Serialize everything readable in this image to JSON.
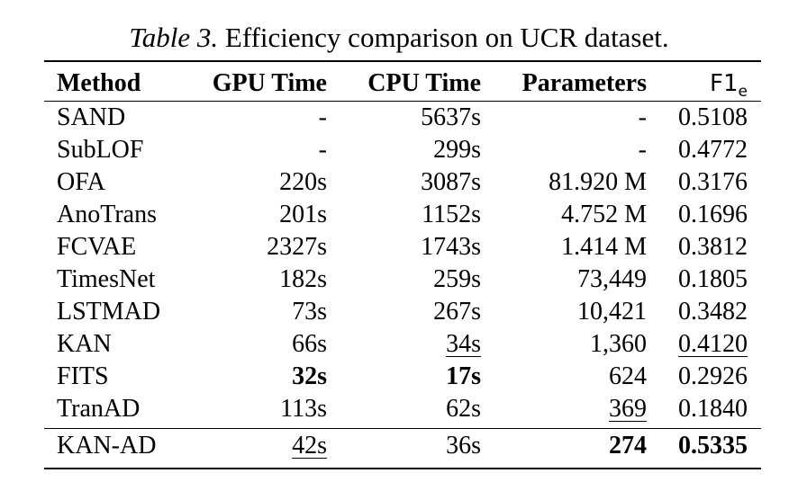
{
  "caption": {
    "label": "Table 3.",
    "text": "Efficiency comparison on UCR dataset."
  },
  "headers": {
    "method": "Method",
    "gpu_time": "GPU Time",
    "cpu_time": "CPU Time",
    "parameters": "Parameters",
    "f1": "F1",
    "f1_sub": "e"
  },
  "rows": [
    {
      "method": "SAND",
      "gpu": "-",
      "cpu": "5637s",
      "params": "-",
      "f1": "0.5108"
    },
    {
      "method": "SubLOF",
      "gpu": "-",
      "cpu": "299s",
      "params": "-",
      "f1": "0.4772"
    },
    {
      "method": "OFA",
      "gpu": "220s",
      "cpu": "3087s",
      "params": "81.920 M",
      "f1": "0.3176"
    },
    {
      "method": "AnoTrans",
      "gpu": "201s",
      "cpu": "1152s",
      "params": "4.752 M",
      "f1": "0.1696"
    },
    {
      "method": "FCVAE",
      "gpu": "2327s",
      "cpu": "1743s",
      "params": "1.414 M",
      "f1": "0.3812"
    },
    {
      "method": "TimesNet",
      "gpu": "182s",
      "cpu": "259s",
      "params": "73,449",
      "f1": "0.1805"
    },
    {
      "method": "LSTMAD",
      "gpu": "73s",
      "cpu": "267s",
      "params": "10,421",
      "f1": "0.3482"
    },
    {
      "method": "KAN",
      "gpu": "66s",
      "cpu": "34s",
      "params": "1,360",
      "f1": "0.4120"
    },
    {
      "method": "FITS",
      "gpu": "32s",
      "cpu": "17s",
      "params": "624",
      "f1": "0.2926"
    },
    {
      "method": "TranAD",
      "gpu": "113s",
      "cpu": "62s",
      "params": "369",
      "f1": "0.1840"
    },
    {
      "method": "KAN-AD",
      "gpu": "42s",
      "cpu": "36s",
      "params": "274",
      "f1": "0.5335"
    }
  ]
}
